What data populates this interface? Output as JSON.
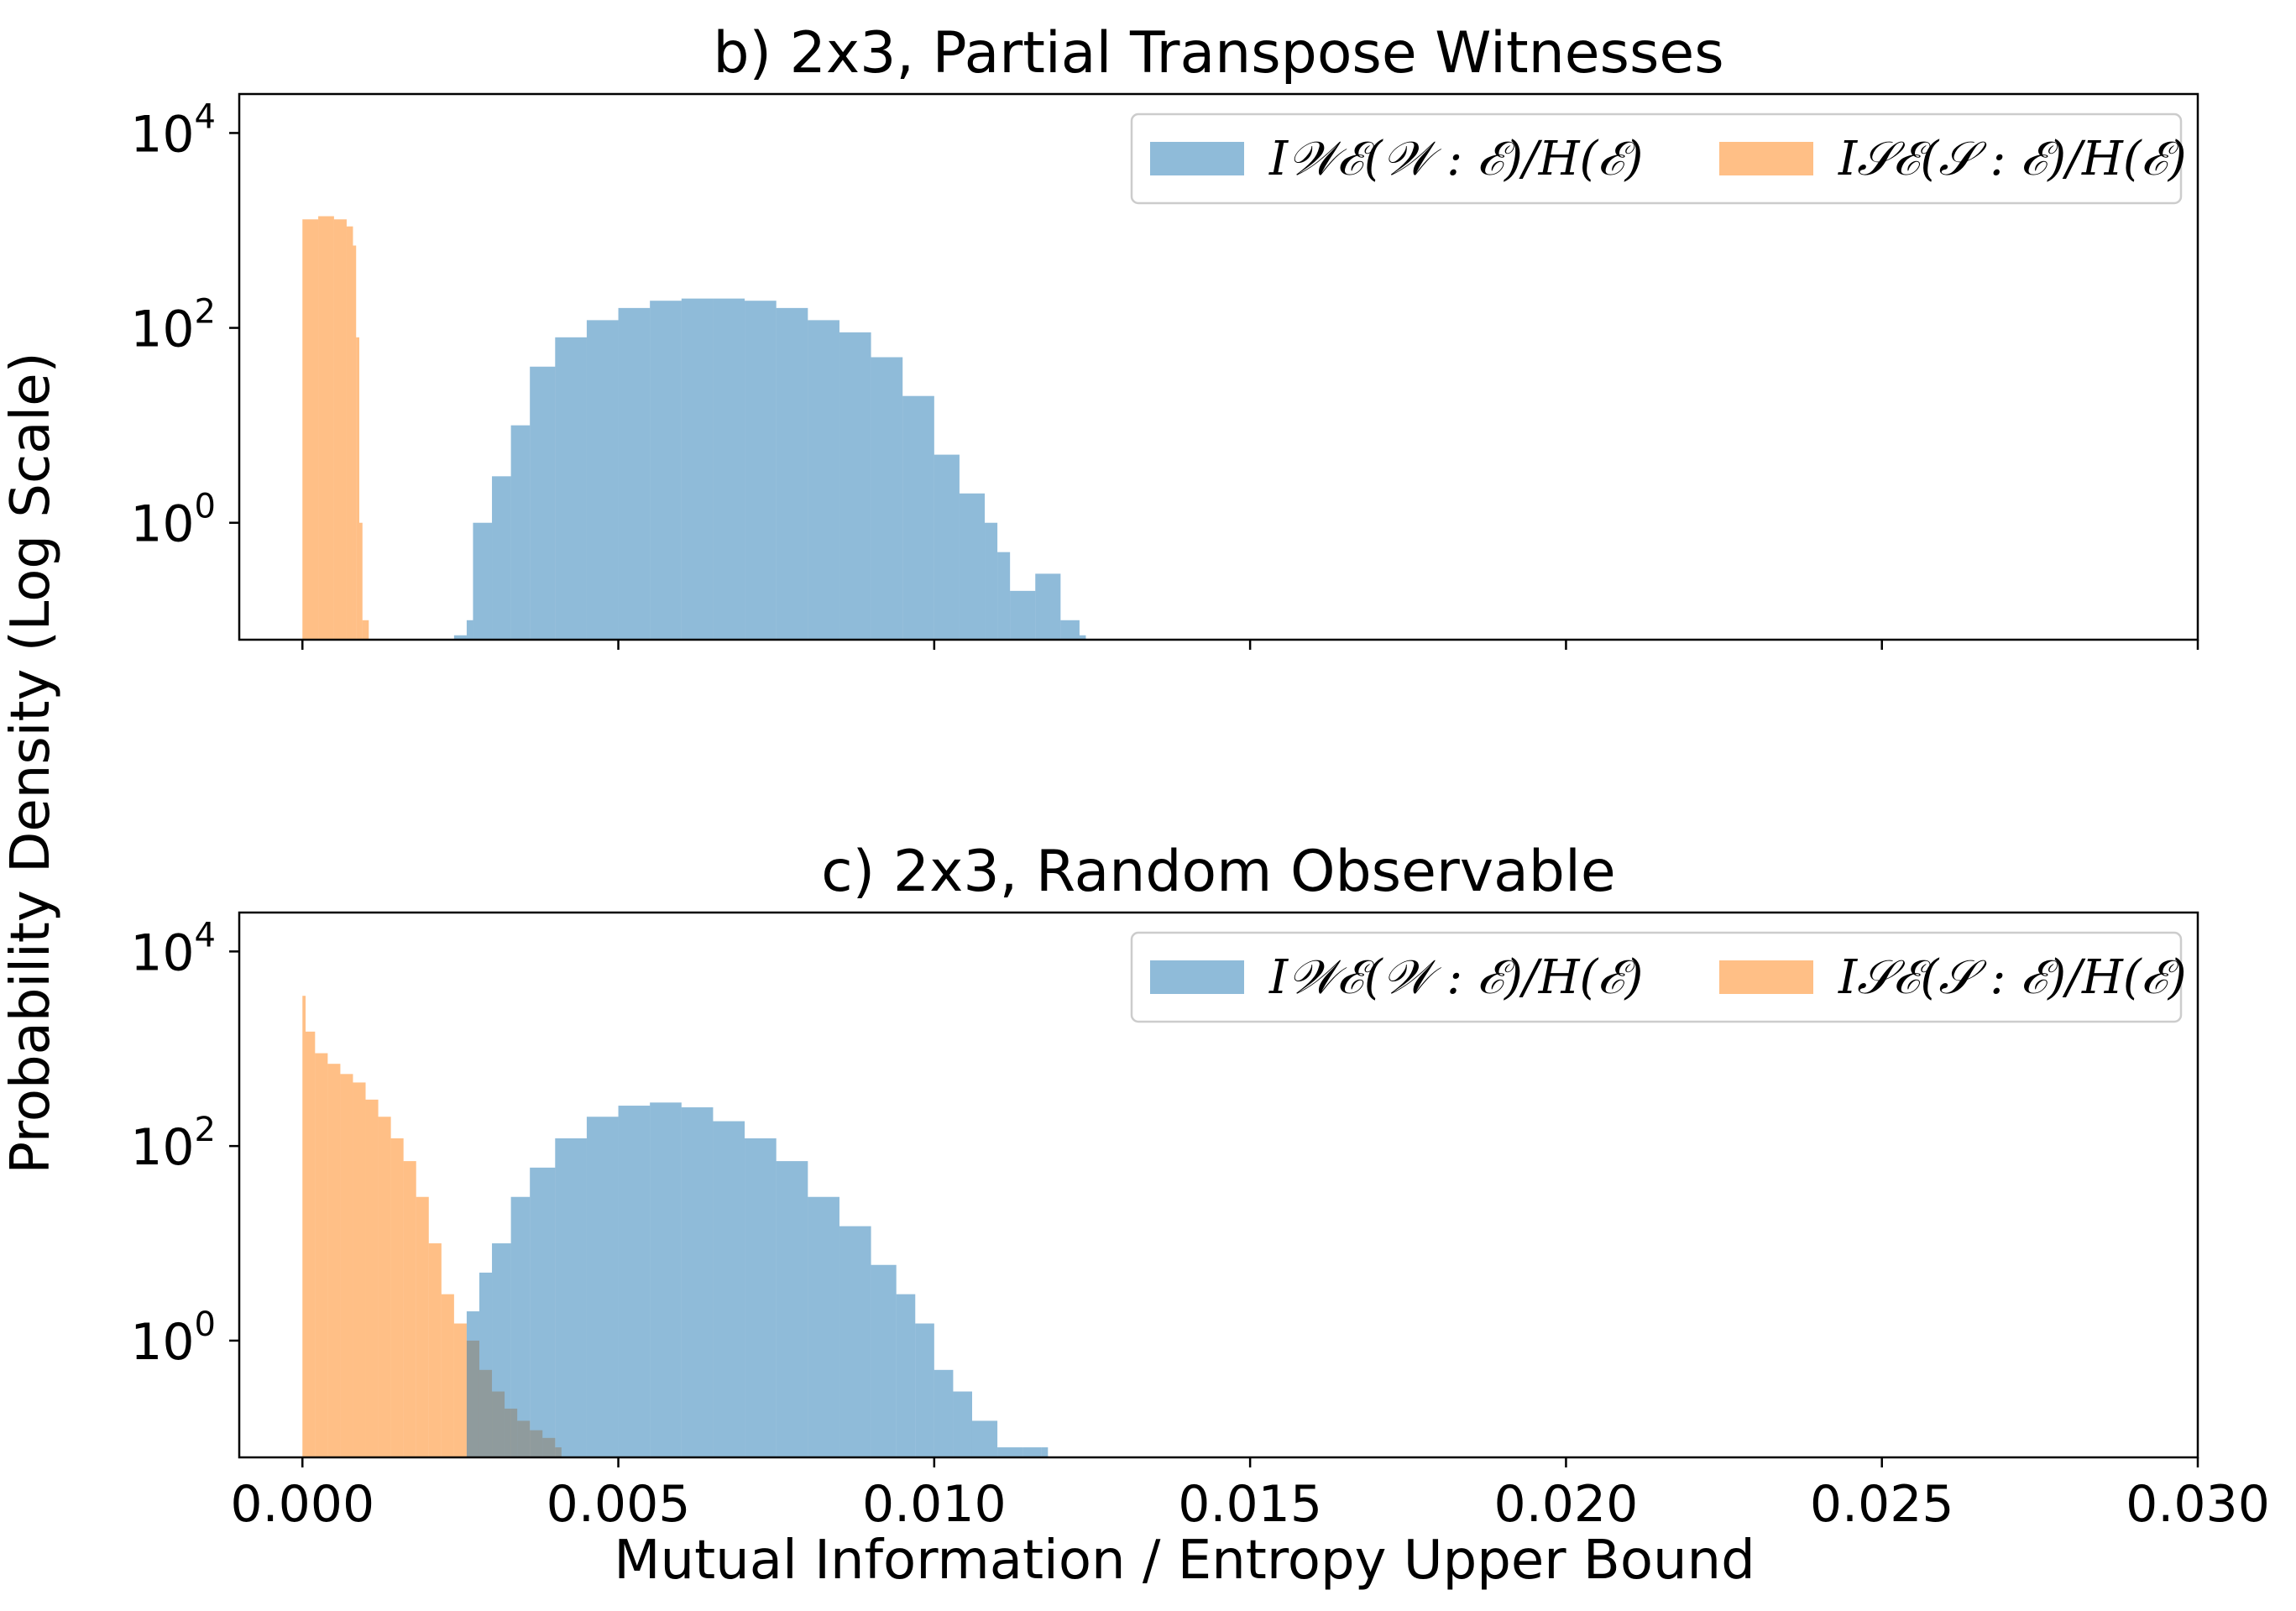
{
  "figure": {
    "ylabel": "Probability Density (Log Scale)",
    "xlabel": "Mutual Information / Entropy Upper Bound"
  },
  "colors": {
    "blue": "#1f77b4",
    "orange": "#ff7f0e",
    "axis": "#000000",
    "legend_border": "#cccccc"
  },
  "chart_data": [
    {
      "type": "bar",
      "title": "b) 2x3, Partial Transpose Witnesses",
      "xlim": [
        -0.001,
        0.03
      ],
      "ylim_log10": [
        -1.2,
        4.4
      ],
      "yscale": "log",
      "ytick_exponents": [
        "4",
        "2",
        "0"
      ],
      "xtick_labels_visible": false,
      "legend": {
        "placement": "upper right",
        "ncol": 2,
        "entries": [
          {
            "label": "I𝒲ℰ(𝒲 : ℰ)/H(ℰ)",
            "color_key": "blue"
          },
          {
            "label": "I𝒮ℰ(𝒮 : ℰ)/H(ℰ)",
            "color_key": "orange"
          }
        ]
      },
      "series": [
        {
          "color_key": "orange",
          "alpha": 0.5,
          "x": [
            0.0,
            0.00025,
            0.0005,
            0.0007,
            0.0008,
            0.00085,
            0.0009,
            0.00095
          ],
          "y": [
            1300,
            1400,
            1300,
            1100,
            700,
            80,
            1.0,
            0.1
          ]
        },
        {
          "color_key": "blue",
          "alpha": 0.5,
          "x": [
            0.0024,
            0.0026,
            0.0027,
            0.003,
            0.0033,
            0.0036,
            0.004,
            0.0045,
            0.005,
            0.0055,
            0.006,
            0.0065,
            0.007,
            0.0075,
            0.008,
            0.0085,
            0.009,
            0.0095,
            0.01,
            0.0104,
            0.0108,
            0.011,
            0.0112,
            0.0116,
            0.012,
            0.0123
          ],
          "y": [
            0.07,
            0.1,
            1.0,
            3.0,
            10.0,
            40.0,
            80.0,
            120.0,
            160.0,
            190.0,
            200.0,
            200.0,
            190.0,
            160.0,
            120.0,
            90.0,
            50.0,
            20.0,
            5.0,
            2.0,
            1.0,
            0.5,
            0.2,
            0.3,
            0.1,
            0.07
          ]
        }
      ]
    },
    {
      "type": "bar",
      "title": "c) 2x3, Random Observable",
      "xlim": [
        -0.001,
        0.03
      ],
      "ylim_log10": [
        -1.2,
        4.4
      ],
      "yscale": "log",
      "ytick_exponents": [
        "4",
        "2",
        "0"
      ],
      "xtick_labels": [
        "0.000",
        "0.005",
        "0.010",
        "0.015",
        "0.020",
        "0.025",
        "0.030"
      ],
      "xtick_values": [
        0.0,
        0.005,
        0.01,
        0.015,
        0.02,
        0.025,
        0.03
      ],
      "legend": {
        "placement": "upper right",
        "ncol": 2,
        "entries": [
          {
            "label": "I𝒲ℰ(𝒲 : ℰ)/H(ℰ)",
            "color_key": "blue"
          },
          {
            "label": "I𝒮ℰ(𝒮 : ℰ)/H(ℰ)",
            "color_key": "orange"
          }
        ]
      },
      "series": [
        {
          "color_key": "orange",
          "alpha": 0.5,
          "x": [
            0.0,
            5e-05,
            0.0002,
            0.0004,
            0.0006,
            0.0008,
            0.001,
            0.0012,
            0.0014,
            0.0016,
            0.0018,
            0.002,
            0.0022,
            0.0024,
            0.0026,
            0.0028,
            0.003,
            0.0032,
            0.0034,
            0.0036,
            0.0038,
            0.004
          ],
          "y": [
            3500,
            1500,
            900,
            700,
            550,
            450,
            300,
            200,
            120,
            70,
            30,
            10,
            3.0,
            1.5,
            1.0,
            0.5,
            0.3,
            0.2,
            0.15,
            0.12,
            0.1,
            0.08
          ]
        },
        {
          "color_key": "blue",
          "alpha": 0.5,
          "x": [
            0.0026,
            0.0028,
            0.003,
            0.0033,
            0.0036,
            0.004,
            0.0045,
            0.005,
            0.0055,
            0.006,
            0.0065,
            0.007,
            0.0075,
            0.008,
            0.0085,
            0.009,
            0.0094,
            0.0097,
            0.01,
            0.0103,
            0.0106,
            0.011,
            0.0114,
            0.0117
          ],
          "y": [
            2.0,
            5.0,
            10.0,
            30.0,
            60.0,
            120.0,
            200.0,
            260.0,
            280.0,
            250.0,
            180.0,
            120.0,
            70.0,
            30.0,
            15.0,
            6.0,
            3.0,
            1.5,
            0.5,
            0.3,
            0.15,
            0.08,
            0.08,
            0.08
          ]
        }
      ]
    }
  ]
}
